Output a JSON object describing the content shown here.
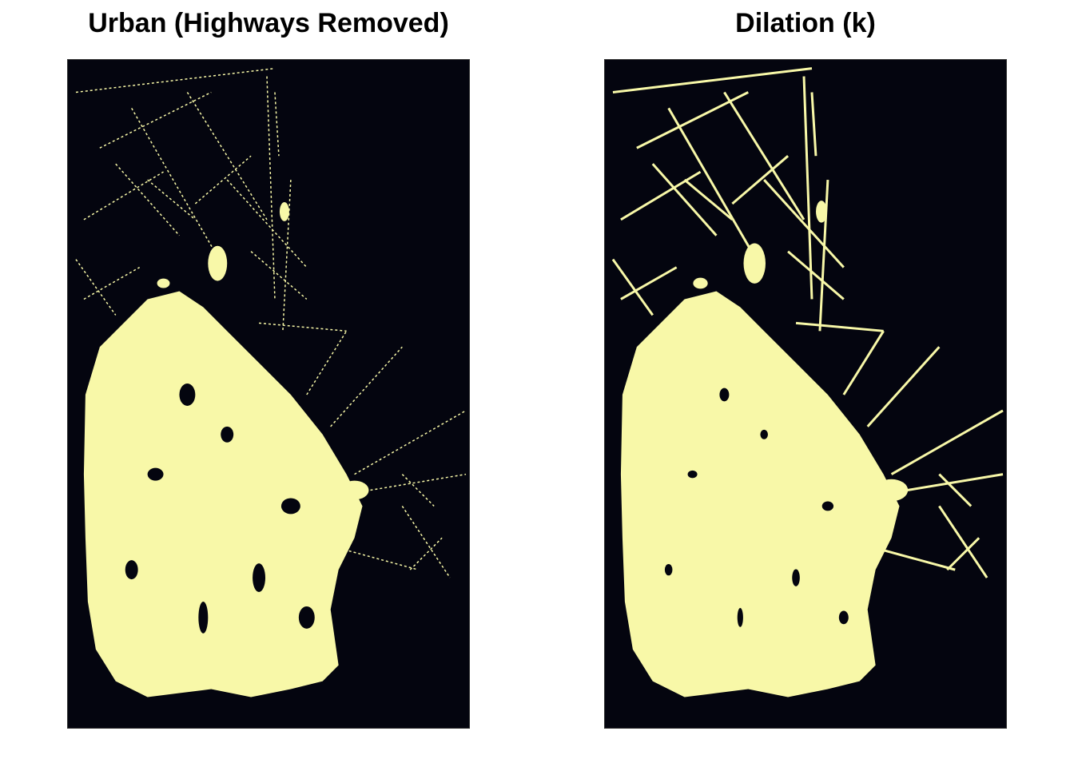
{
  "panels": [
    {
      "title": "Urban (Highways Removed)",
      "variant": "original"
    },
    {
      "title": "Dilation (k)",
      "variant": "dilated"
    }
  ],
  "colors": {
    "background": "#04050f",
    "urban": "#f8f8a8",
    "page": "#ffffff"
  }
}
